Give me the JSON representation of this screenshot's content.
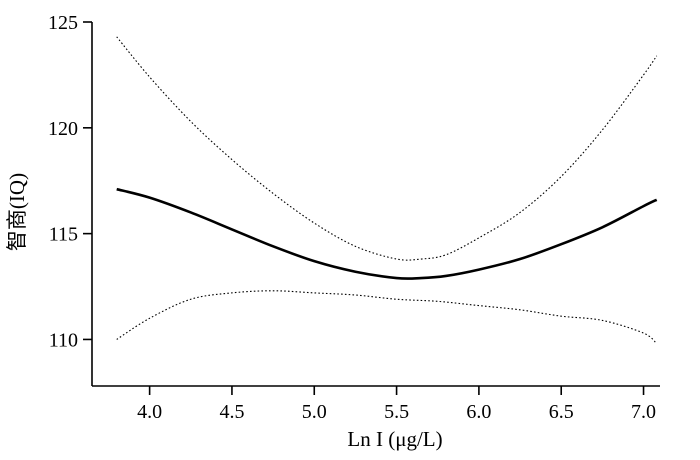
{
  "chart_data": {
    "type": "line",
    "title": "",
    "xlabel": "Ln I (μg/L)",
    "ylabel": "智商(IQ)",
    "xlim": [
      3.65,
      7.1
    ],
    "ylim": [
      107.8,
      125
    ],
    "xticks": [
      "4.0",
      "4.5",
      "5.0",
      "5.5",
      "6.0",
      "6.5",
      "7.0"
    ],
    "yticks": [
      "110",
      "115",
      "120",
      "125"
    ],
    "grid": false,
    "legend": "none",
    "series": [
      {
        "style": "solid",
        "color": "#000000",
        "x": [
          3.8,
          4.0,
          4.25,
          4.5,
          4.75,
          5.0,
          5.25,
          5.5,
          5.65,
          5.8,
          6.0,
          6.25,
          6.5,
          6.75,
          7.0,
          7.08
        ],
        "y": [
          117.1,
          116.7,
          116.0,
          115.2,
          114.4,
          113.7,
          113.2,
          112.9,
          112.9,
          113.0,
          113.3,
          113.8,
          114.5,
          115.3,
          116.3,
          116.6
        ]
      },
      {
        "style": "dotted",
        "color": "#000000",
        "x": [
          3.8,
          4.0,
          4.25,
          4.5,
          4.75,
          5.0,
          5.25,
          5.5,
          5.65,
          5.8,
          6.0,
          6.25,
          6.5,
          6.75,
          7.0,
          7.08
        ],
        "y": [
          124.3,
          122.4,
          120.3,
          118.5,
          116.9,
          115.5,
          114.4,
          113.8,
          113.8,
          114.0,
          114.8,
          116.0,
          117.7,
          119.9,
          122.5,
          123.4
        ]
      },
      {
        "style": "dotted",
        "color": "#000000",
        "x": [
          3.8,
          4.0,
          4.25,
          4.5,
          4.75,
          5.0,
          5.25,
          5.5,
          5.75,
          6.0,
          6.25,
          6.5,
          6.75,
          7.0,
          7.08
        ],
        "y": [
          110.0,
          111.0,
          111.9,
          112.2,
          112.3,
          112.2,
          112.1,
          111.9,
          111.8,
          111.6,
          111.4,
          111.1,
          110.9,
          110.3,
          109.8
        ]
      }
    ]
  }
}
